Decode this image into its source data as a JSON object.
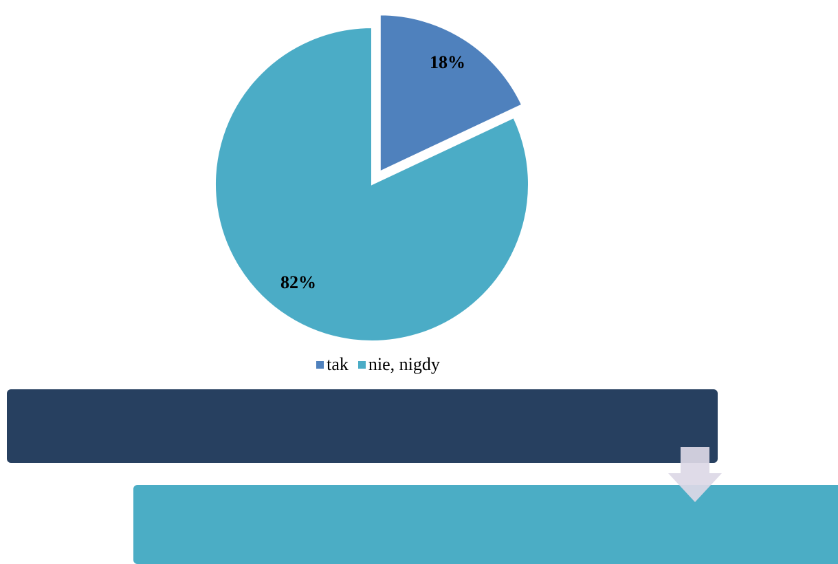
{
  "chart_data": {
    "type": "pie",
    "title": "",
    "exploded": "tak",
    "legend_placement": "bottom",
    "slices": [
      {
        "label": "tak",
        "value": 18,
        "label_text": "18%",
        "color": "#4f81bd"
      },
      {
        "label": "nie, nigdy",
        "value": 82,
        "label_text": "82%",
        "color": "#4bacc6"
      }
    ]
  },
  "diagram": {
    "boxes": [
      {
        "text": "",
        "color": "#274060"
      },
      {
        "text": "",
        "color": "#4badc5"
      }
    ],
    "arrow": {
      "direction": "down",
      "color": "#dcd8e6"
    }
  }
}
